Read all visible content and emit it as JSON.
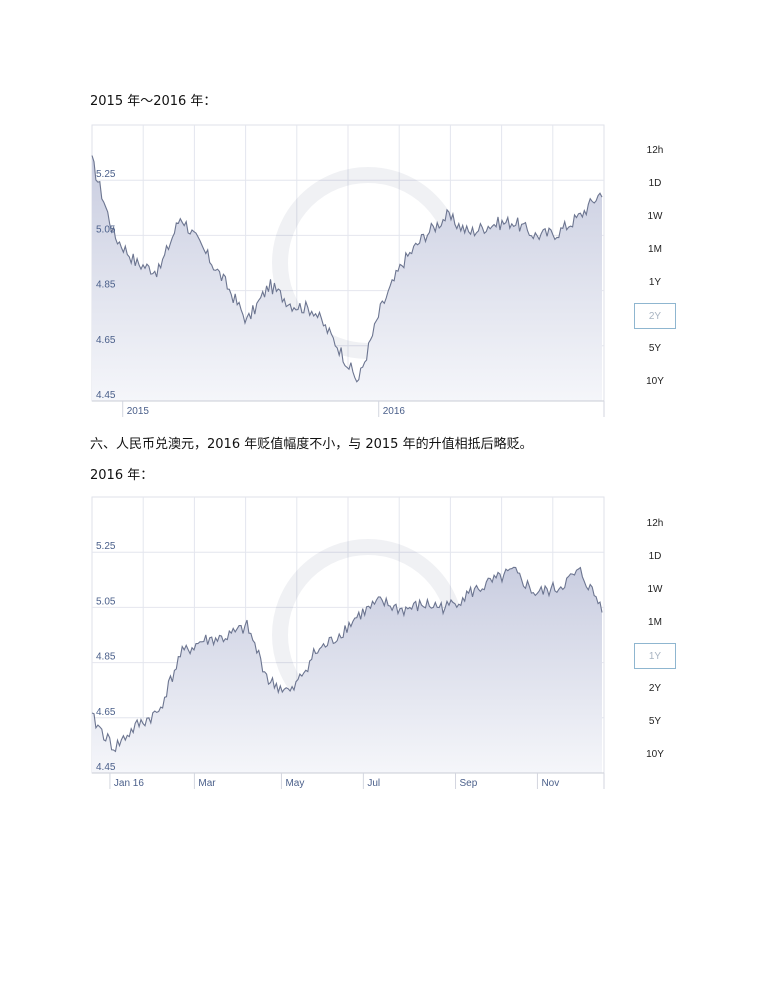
{
  "section1": {
    "caption": "2015 年～2016 年："
  },
  "paragraph": "六、人民币兑澳元，2016 年贬值幅度不小，与 2015 年的升值相抵后略贬。",
  "section2": {
    "caption": "2016 年："
  },
  "colors": {
    "line": "#6c7590",
    "fill_top": "#c9cde0",
    "fill_bottom": "#f5f6fa",
    "grid": "#e4e6ee",
    "label": "#4a5f8a",
    "active_border": "#8fb6d0"
  },
  "range_buttons": {
    "chart1": {
      "items": [
        "12h",
        "1D",
        "1W",
        "1M",
        "1Y",
        "2Y",
        "5Y",
        "10Y"
      ],
      "selected": "2Y"
    },
    "chart2": {
      "items": [
        "12h",
        "1D",
        "1W",
        "1M",
        "1Y",
        "2Y",
        "5Y",
        "10Y"
      ],
      "selected": "1Y"
    }
  },
  "chart_data": [
    {
      "type": "area",
      "x_ticks": [
        "2015",
        "2016"
      ],
      "y_ticks": [
        "5.25",
        "5.05",
        "4.85",
        "4.65",
        "4.45"
      ],
      "ylim": [
        4.45,
        5.45
      ],
      "grid": true,
      "x": [
        "2015-01",
        "2015-02",
        "2015-03",
        "2015-04",
        "2015-05",
        "2015-06",
        "2015-07",
        "2015-08",
        "2015-09",
        "2015-10",
        "2015-11",
        "2015-12",
        "2016-01",
        "2016-02",
        "2016-03",
        "2016-04",
        "2016-05",
        "2016-06",
        "2016-07",
        "2016-08",
        "2016-09",
        "2016-10",
        "2016-11",
        "2016-12"
      ],
      "series": [
        {
          "values": [
            5.32,
            5.05,
            4.95,
            4.92,
            5.12,
            5.0,
            4.88,
            4.74,
            4.87,
            4.8,
            4.78,
            4.66,
            4.52,
            4.78,
            4.95,
            5.05,
            5.12,
            5.06,
            5.09,
            5.1,
            5.05,
            5.06,
            5.12,
            5.21
          ]
        }
      ]
    },
    {
      "type": "area",
      "x_ticks": [
        "Jan 16",
        "Mar",
        "May",
        "Jul",
        "Sep",
        "Nov"
      ],
      "y_ticks": [
        "5.25",
        "5.05",
        "4.85",
        "4.65",
        "4.45"
      ],
      "ylim": [
        4.45,
        5.45
      ],
      "grid": true,
      "x": [
        "Jan",
        "Jan",
        "Feb",
        "Feb",
        "Mar",
        "Mar",
        "Apr",
        "Apr",
        "May",
        "May",
        "Jun",
        "Jun",
        "Jul",
        "Jul",
        "Aug",
        "Aug",
        "Sep",
        "Sep",
        "Oct",
        "Oct",
        "Nov",
        "Nov",
        "Dec",
        "Dec"
      ],
      "series": [
        {
          "values": [
            4.65,
            4.54,
            4.62,
            4.67,
            4.88,
            4.93,
            4.94,
            4.98,
            4.78,
            4.74,
            4.88,
            4.94,
            5.02,
            5.07,
            5.04,
            5.06,
            5.05,
            5.1,
            5.14,
            5.18,
            5.1,
            5.12,
            5.18,
            5.05
          ]
        }
      ]
    }
  ]
}
